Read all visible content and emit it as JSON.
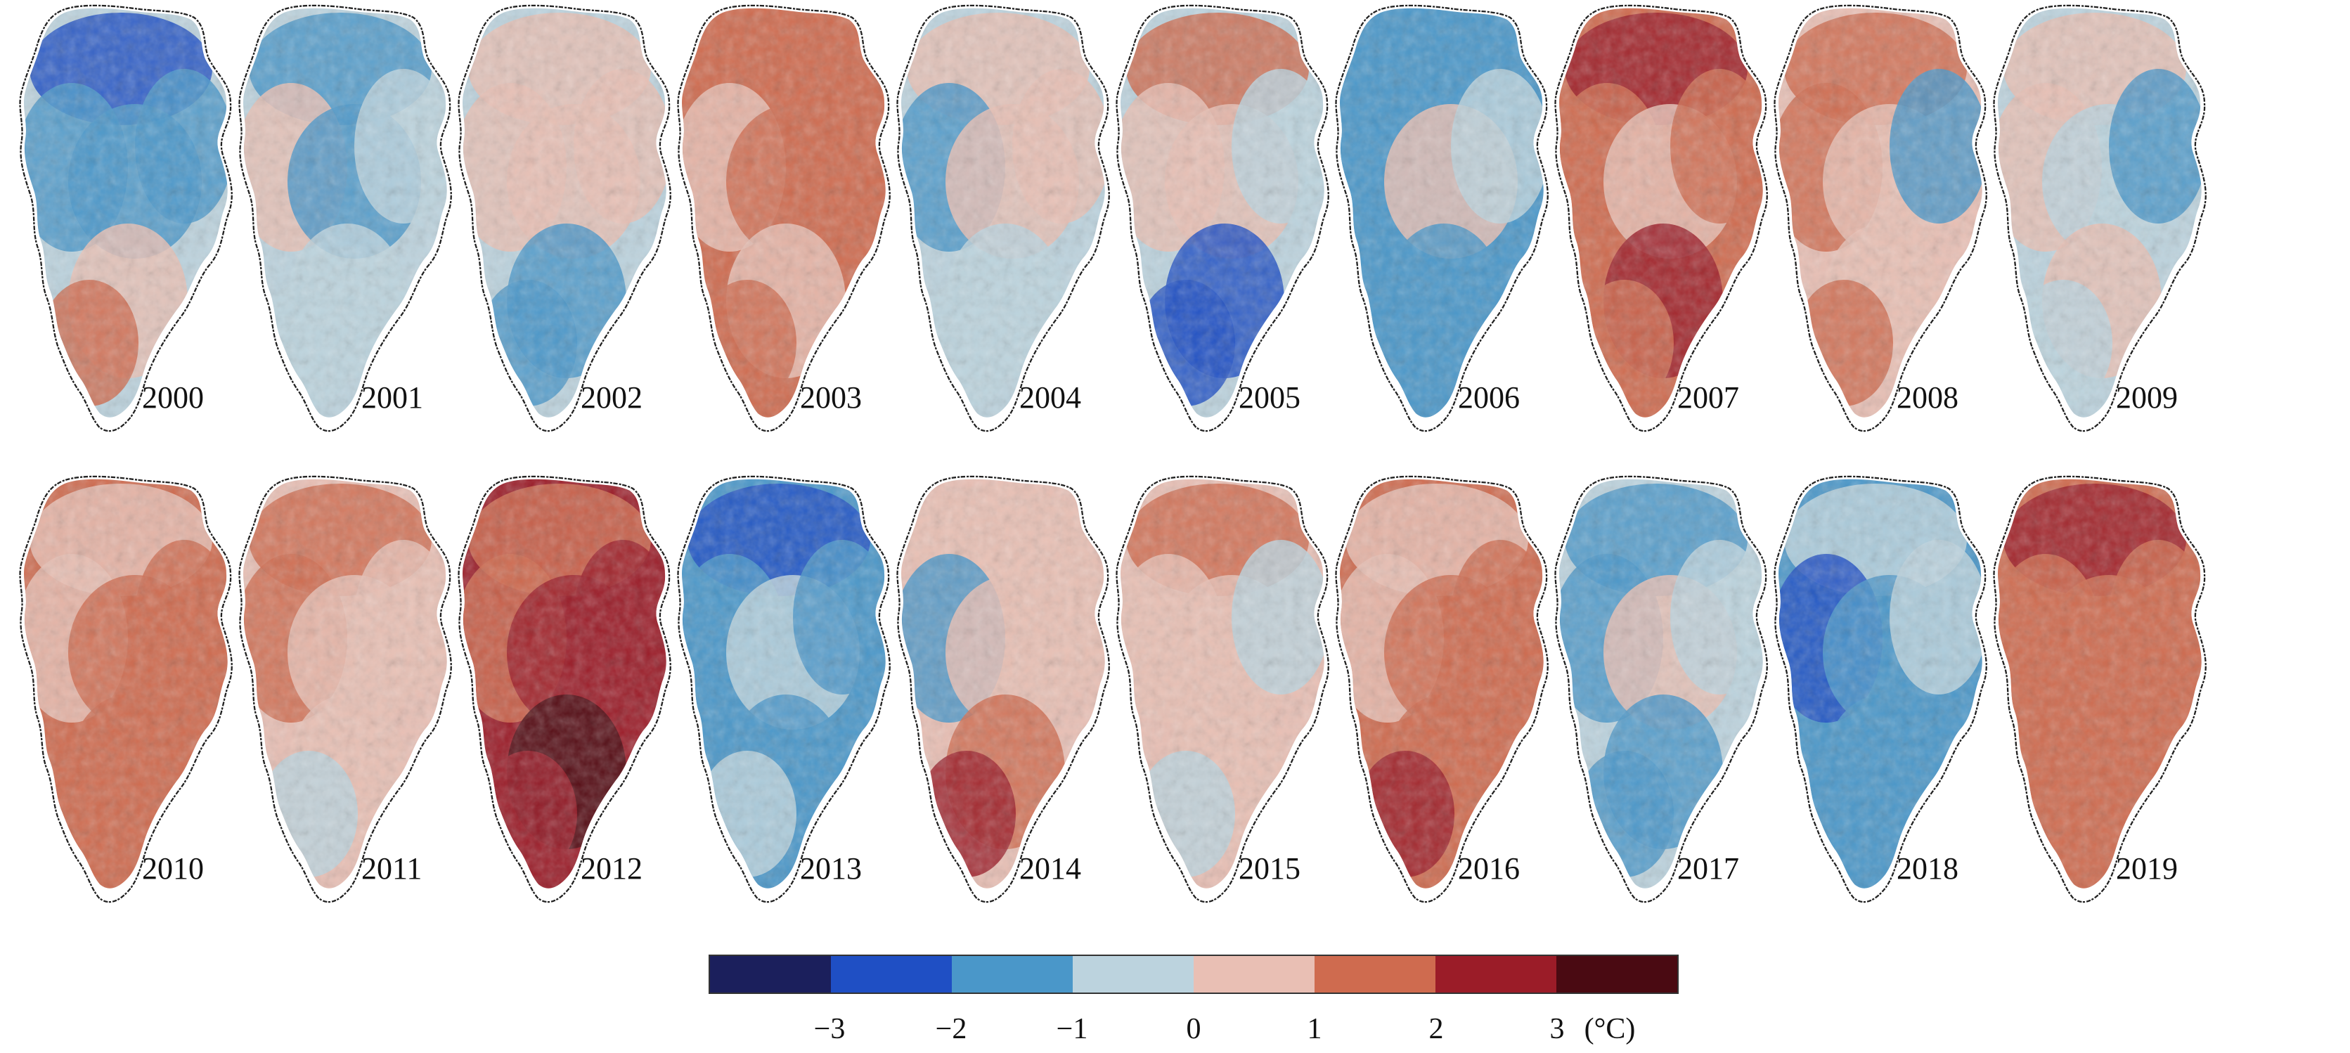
{
  "figure": {
    "panels": [
      {
        "year": "2000",
        "anomaly": {
          "north": -2.3,
          "west": -1.8,
          "central": -1.7,
          "east": -1.2,
          "south": 0.9,
          "southwest": 1.2
        }
      },
      {
        "year": "2001",
        "anomaly": {
          "north": -1.9,
          "west": 0.4,
          "central": -1.6,
          "east": -1.0,
          "south": -0.8,
          "southwest": -1.0
        }
      },
      {
        "year": "2002",
        "anomaly": {
          "north": 0.8,
          "west": 0.5,
          "central": 0.2,
          "east": 0.9,
          "south": -1.8,
          "southwest": -1.6
        }
      },
      {
        "year": "2003",
        "anomaly": {
          "north": 1.6,
          "west": 0.8,
          "central": 1.0,
          "east": 1.5,
          "south": 0.7,
          "southwest": 1.1
        }
      },
      {
        "year": "2004",
        "anomaly": {
          "north": 0.1,
          "west": -1.9,
          "central": 0.6,
          "east": 0.3,
          "south": -0.6,
          "southwest": -0.9
        }
      },
      {
        "year": "2005",
        "anomaly": {
          "north": 1.2,
          "west": 0.6,
          "central": 0.5,
          "east": -0.7,
          "south": -2.1,
          "southwest": -2.3
        }
      },
      {
        "year": "2006",
        "anomaly": {
          "north": -2.0,
          "west": -1.4,
          "central": 0.3,
          "east": -0.4,
          "south": -1.5,
          "southwest": -1.2
        }
      },
      {
        "year": "2007",
        "anomaly": {
          "north": 2.2,
          "west": 1.9,
          "central": 0.8,
          "east": 1.2,
          "south": 2.0,
          "southwest": 1.4
        }
      },
      {
        "year": "2008",
        "anomaly": {
          "north": 1.7,
          "west": 1.1,
          "central": 0.4,
          "east": -1.9,
          "south": 0.9,
          "southwest": 1.3
        }
      },
      {
        "year": "2009",
        "anomaly": {
          "north": 0.7,
          "west": 0.9,
          "central": -0.8,
          "east": -1.1,
          "south": 0.4,
          "southwest": -0.9
        }
      },
      {
        "year": "2010",
        "anomaly": {
          "north": 0.8,
          "west": 0.9,
          "central": 1.3,
          "east": 1.5,
          "south": 1.7,
          "southwest": 1.4
        }
      },
      {
        "year": "2011",
        "anomaly": {
          "north": 1.5,
          "west": 1.2,
          "central": 0.7,
          "east": 0.3,
          "south": 0.9,
          "southwest": -0.8
        }
      },
      {
        "year": "2012",
        "anomaly": {
          "north": 1.4,
          "west": 1.9,
          "central": 2.1,
          "east": 2.6,
          "south": 3.2,
          "southwest": 2.9
        }
      },
      {
        "year": "2013",
        "anomaly": {
          "north": -2.2,
          "west": -1.4,
          "central": -0.9,
          "east": -1.3,
          "south": -1.6,
          "southwest": -0.8
        }
      },
      {
        "year": "2014",
        "anomaly": {
          "north": 0.3,
          "west": -1.8,
          "central": 0.5,
          "east": 0.4,
          "south": 1.0,
          "southwest": 2.4
        }
      },
      {
        "year": "2015",
        "anomaly": {
          "north": 1.4,
          "west": 0.9,
          "central": 0.6,
          "east": -0.8,
          "south": 0.5,
          "southwest": -0.9
        }
      },
      {
        "year": "2016",
        "anomaly": {
          "north": 0.5,
          "west": 0.9,
          "central": 1.4,
          "east": 1.3,
          "south": 1.9,
          "southwest": 2.7
        }
      },
      {
        "year": "2017",
        "anomaly": {
          "north": -1.6,
          "west": -1.2,
          "central": 0.3,
          "east": -0.6,
          "south": -1.3,
          "southwest": -1.1
        }
      },
      {
        "year": "2018",
        "anomaly": {
          "north": -1.0,
          "west": -2.4,
          "central": -1.2,
          "east": -0.7,
          "south": -1.7,
          "southwest": -1.5
        }
      },
      {
        "year": "2019",
        "anomaly": {
          "north": 2.1,
          "west": 1.6,
          "central": 1.1,
          "east": 1.8,
          "south": 1.7,
          "southwest": 1.3
        }
      }
    ]
  },
  "colorbar": {
    "colors": [
      "#1b1f5c",
      "#1f4fc4",
      "#4a97c9",
      "#bcd3de",
      "#e9bfb4",
      "#cf6b4f",
      "#9b1c28",
      "#4a0a12"
    ],
    "ticks": [
      {
        "value": -3,
        "label": "−3"
      },
      {
        "value": -2,
        "label": "−2"
      },
      {
        "value": -1,
        "label": "−1"
      },
      {
        "value": 0,
        "label": "0"
      },
      {
        "value": 1,
        "label": "1"
      },
      {
        "value": 2,
        "label": "2"
      },
      {
        "value": 3,
        "label": "3"
      }
    ],
    "unit": "(°C)",
    "range": [
      -4,
      4
    ]
  }
}
